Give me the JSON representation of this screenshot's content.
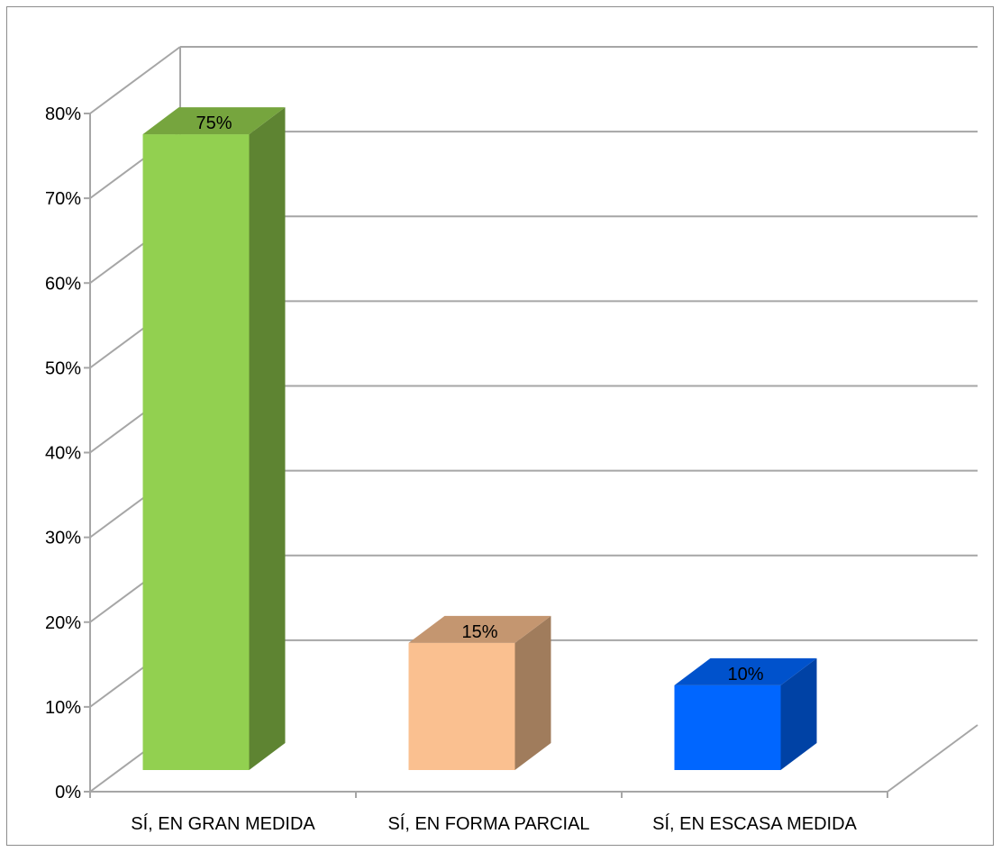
{
  "chart_data": {
    "type": "bar",
    "style": "3d-column",
    "categories": [
      "SÍ, EN GRAN MEDIDA",
      "SÍ, EN FORMA PARCIAL",
      "SÍ, EN ESCASA MEDIDA"
    ],
    "values": [
      75,
      15,
      10
    ],
    "data_labels": [
      "75%",
      "15%",
      "10%"
    ],
    "colors": {
      "front": [
        "#92D050",
        "#FAC090",
        "#0066FF"
      ],
      "side": [
        "#5E8432",
        "#A07C5C",
        "#0042A5"
      ],
      "top": [
        "#76A53E",
        "#C49670",
        "#0052CC"
      ],
      "grid": "#A6A6A6"
    },
    "y_ticks": [
      "0%",
      "10%",
      "20%",
      "30%",
      "40%",
      "50%",
      "60%",
      "70%",
      "80%"
    ],
    "ylim": [
      0,
      80
    ],
    "grid": true,
    "legend": "none"
  }
}
